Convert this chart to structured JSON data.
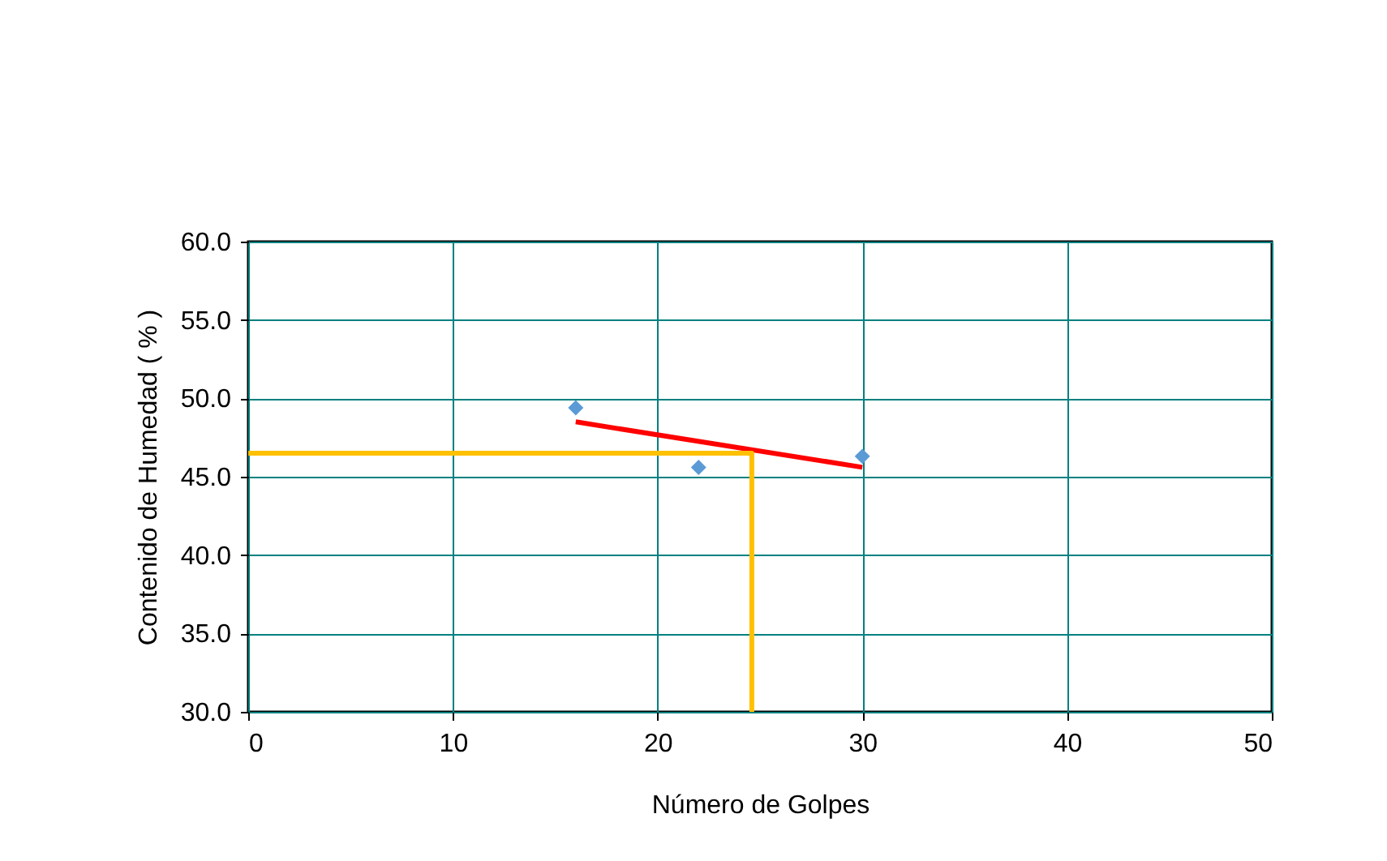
{
  "chart_data": {
    "type": "scatter",
    "xlabel": "Número de Golpes",
    "ylabel": "Contenido de Humedad ( % )",
    "xlim": [
      0,
      50
    ],
    "xticks": [
      0,
      10,
      20,
      30,
      40,
      50
    ],
    "ylim": [
      30,
      60
    ],
    "yticks": [
      {
        "value": 30,
        "label": "30.0"
      },
      {
        "value": 35,
        "label": "35.0"
      },
      {
        "value": 40,
        "label": "40.0"
      },
      {
        "value": 45,
        "label": "45.0"
      },
      {
        "value": 50,
        "label": "50.0"
      },
      {
        "value": 55,
        "label": "55.0"
      },
      {
        "value": 60,
        "label": "60.0"
      }
    ],
    "grid": true,
    "series": [
      {
        "marker": "diamond",
        "color": "#5b9bd5",
        "x": [
          16,
          22,
          30
        ],
        "values": [
          49.4,
          45.6,
          46.3
        ]
      },
      {
        "type": "line",
        "color": "#ff0000",
        "x": [
          16,
          30
        ],
        "values": [
          48.5,
          45.6
        ]
      },
      {
        "type": "line",
        "color": "#ffc000",
        "x": [
          0,
          24.6,
          24.6
        ],
        "values": [
          46.5,
          46.5,
          30
        ]
      }
    ]
  }
}
